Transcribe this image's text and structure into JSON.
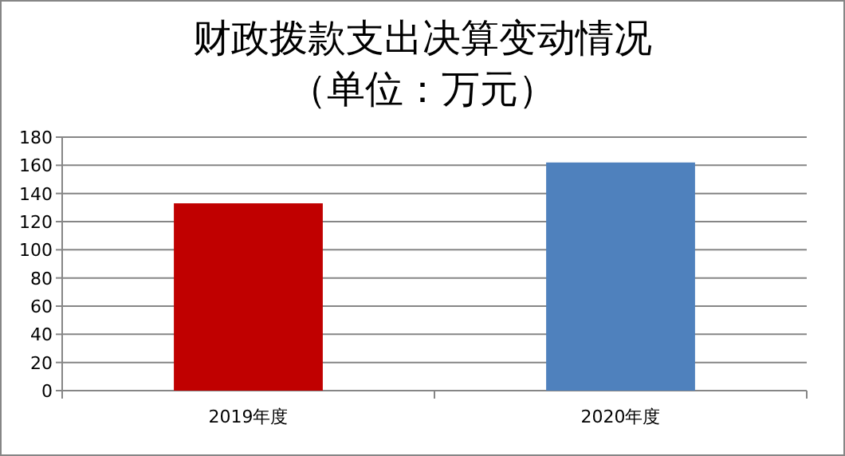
{
  "chart_data": {
    "type": "bar",
    "title": "财政拨款支出决算变动情况",
    "subtitle": "（单位：万元）",
    "categories": [
      "2019年度",
      "2020年度"
    ],
    "values": [
      133,
      162
    ],
    "colors": [
      "#c00000",
      "#4f81bd"
    ],
    "ylim": [
      0,
      180
    ],
    "yticks": [
      0,
      20,
      40,
      60,
      80,
      100,
      120,
      140,
      160,
      180
    ],
    "grid": "y"
  }
}
